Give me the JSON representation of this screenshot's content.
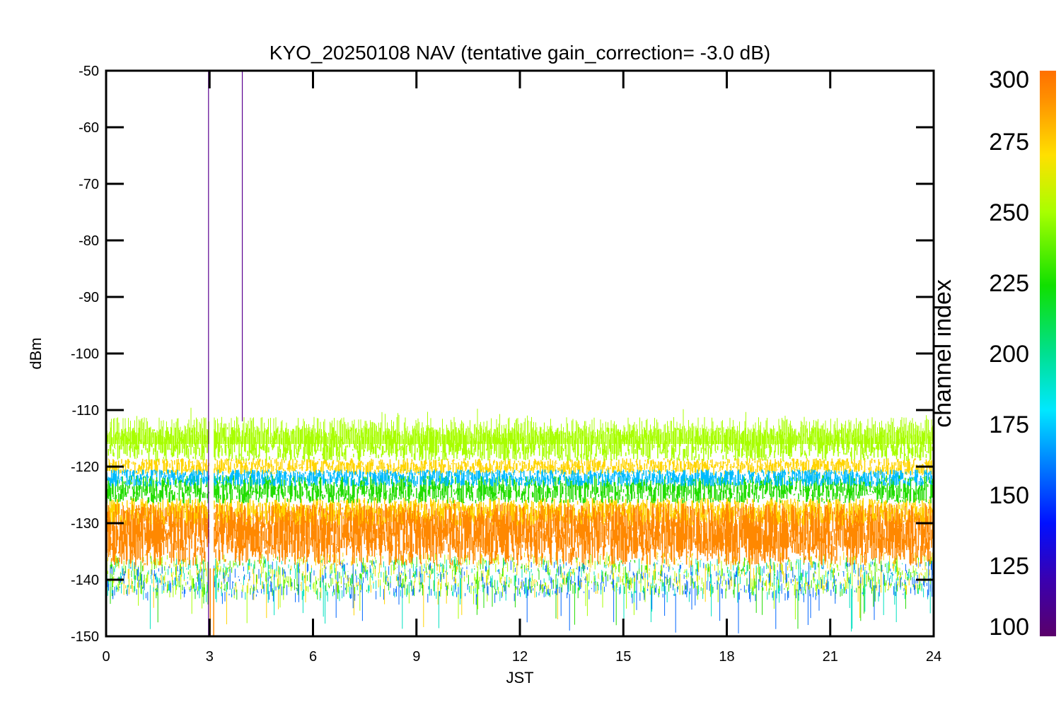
{
  "chart_data": {
    "type": "line",
    "title": "KYO_20250108 NAV (tentative gain_correction= -3.0 dB)",
    "xlabel": "JST",
    "ylabel": "dBm",
    "xlim": [
      0,
      24
    ],
    "ylim": [
      -150,
      -50
    ],
    "x_ticks": [
      "0",
      "3",
      "6",
      "9",
      "12",
      "15",
      "18",
      "21",
      "24"
    ],
    "y_ticks": [
      "-50",
      "-60",
      "-70",
      "-80",
      "-90",
      "-100",
      "-110",
      "-120",
      "-130",
      "-140",
      "-150"
    ],
    "colorbar": {
      "label": "channel index",
      "range": [
        100,
        300
      ],
      "ticks": [
        "300",
        "275",
        "250",
        "225",
        "200",
        "175",
        "150",
        "125",
        "100"
      ],
      "colormap": "rainbow"
    },
    "series": [
      {
        "channel_index": 290,
        "color": "#ff8800",
        "mean_dbm": -132,
        "half_spread_dbm": 5.5
      },
      {
        "channel_index": 275,
        "color": "#ffd400",
        "mean_dbm": -128,
        "half_spread_dbm": 2.5
      },
      {
        "channel_index": 270,
        "color": "#ffd400",
        "mean_dbm": -120,
        "half_spread_dbm": 1.5
      },
      {
        "channel_index": 255,
        "color": "#a8ff00",
        "mean_dbm": -116,
        "half_spread_dbm": 3.0
      },
      {
        "channel_index": 225,
        "color": "#22dd00",
        "mean_dbm": -124,
        "half_spread_dbm": 2.5
      },
      {
        "channel_index": 165,
        "color": "#00bbff",
        "mean_dbm": -122,
        "half_spread_dbm": 1.5
      },
      {
        "channel_index": 290,
        "color": "#ff8800",
        "mean_dbm": -131,
        "half_spread_dbm": 4.5
      }
    ],
    "lower_fringe": {
      "mean_dbm": -138,
      "half_spread_dbm": 3.0,
      "colors": [
        "#ffd400",
        "#a8ff00",
        "#22dd00",
        "#00e0c0",
        "#0066ff"
      ]
    },
    "spikes": [
      {
        "x": 2.97,
        "y_top": -50,
        "y_bottom": -150,
        "color": "#5a0090"
      },
      {
        "x": 3.95,
        "y_top": -50,
        "y_bottom": -112,
        "color": "#5a0090"
      }
    ],
    "data_gap": {
      "x_start": 3.0,
      "x_end": 3.12
    }
  }
}
